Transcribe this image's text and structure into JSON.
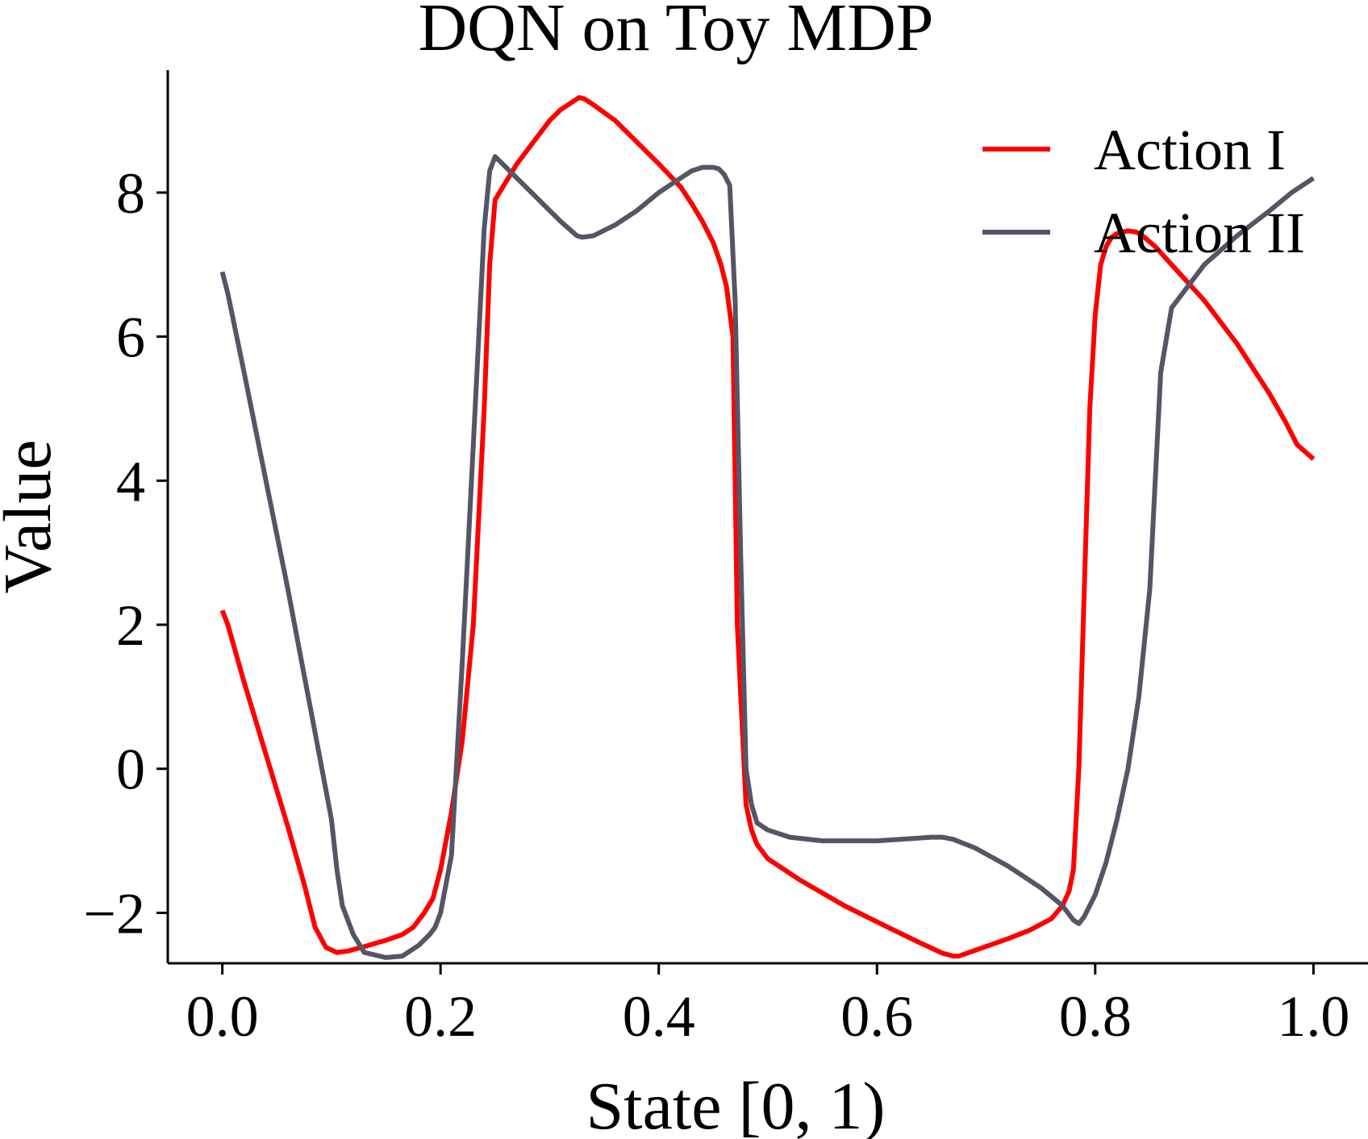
{
  "chart_data": {
    "type": "line",
    "title": "DQN on Toy MDP",
    "xlabel": "State [0, 1)",
    "ylabel": "Value",
    "xlim": [
      -0.05,
      1.05
    ],
    "ylim": [
      -2.7,
      9.7
    ],
    "xticks": [
      0.0,
      0.2,
      0.4,
      0.6,
      0.8,
      1.0
    ],
    "xtick_labels": [
      "0.0",
      "0.2",
      "0.4",
      "0.6",
      "0.8",
      "1.0"
    ],
    "yticks": [
      -2,
      0,
      2,
      4,
      6,
      8
    ],
    "ytick_labels": [
      "−2",
      "0",
      "2",
      "4",
      "6",
      "8"
    ],
    "grid": false,
    "legend_position": "top-right",
    "series": [
      {
        "name": "Action I",
        "color": "#ff0000",
        "x": [
          0.0,
          0.005,
          0.02,
          0.04,
          0.06,
          0.075,
          0.085,
          0.095,
          0.105,
          0.115,
          0.13,
          0.15,
          0.165,
          0.175,
          0.185,
          0.193,
          0.2,
          0.21,
          0.22,
          0.23,
          0.24,
          0.245,
          0.25,
          0.27,
          0.29,
          0.3,
          0.31,
          0.32,
          0.327,
          0.332,
          0.34,
          0.36,
          0.38,
          0.4,
          0.42,
          0.43,
          0.44,
          0.45,
          0.457,
          0.462,
          0.468,
          0.472,
          0.48,
          0.485,
          0.49,
          0.5,
          0.53,
          0.57,
          0.61,
          0.64,
          0.66,
          0.67,
          0.675,
          0.69,
          0.72,
          0.74,
          0.76,
          0.77,
          0.776,
          0.78,
          0.785,
          0.79,
          0.795,
          0.8,
          0.805,
          0.81,
          0.815,
          0.82,
          0.83,
          0.838,
          0.845,
          0.855,
          0.87,
          0.9,
          0.93,
          0.96,
          0.975,
          0.985,
          1.0
        ],
        "y": [
          2.2,
          2.0,
          1.2,
          0.2,
          -0.8,
          -1.6,
          -2.2,
          -2.48,
          -2.55,
          -2.53,
          -2.47,
          -2.38,
          -2.3,
          -2.2,
          -2.0,
          -1.8,
          -1.4,
          -0.6,
          0.4,
          2.0,
          5.0,
          7.0,
          7.9,
          8.4,
          8.8,
          9.0,
          9.15,
          9.25,
          9.32,
          9.3,
          9.22,
          9.0,
          8.7,
          8.4,
          8.08,
          7.85,
          7.6,
          7.3,
          7.0,
          6.7,
          6.0,
          2.0,
          -0.5,
          -0.85,
          -1.05,
          -1.25,
          -1.55,
          -1.9,
          -2.2,
          -2.42,
          -2.56,
          -2.6,
          -2.6,
          -2.52,
          -2.36,
          -2.24,
          -2.08,
          -1.9,
          -1.7,
          -1.4,
          0.0,
          2.5,
          5.0,
          6.3,
          7.0,
          7.25,
          7.38,
          7.43,
          7.47,
          7.45,
          7.38,
          7.25,
          7.0,
          6.5,
          5.9,
          5.2,
          4.8,
          4.5,
          4.3
        ]
      },
      {
        "name": "Action II",
        "color": "#555566",
        "x": [
          0.0,
          0.005,
          0.02,
          0.04,
          0.06,
          0.07,
          0.08,
          0.09,
          0.1,
          0.105,
          0.11,
          0.12,
          0.13,
          0.15,
          0.165,
          0.17,
          0.18,
          0.19,
          0.195,
          0.2,
          0.21,
          0.22,
          0.23,
          0.24,
          0.245,
          0.25,
          0.27,
          0.29,
          0.31,
          0.325,
          0.33,
          0.34,
          0.36,
          0.38,
          0.4,
          0.42,
          0.43,
          0.44,
          0.45,
          0.455,
          0.46,
          0.465,
          0.47,
          0.475,
          0.48,
          0.485,
          0.49,
          0.5,
          0.52,
          0.55,
          0.6,
          0.65,
          0.66,
          0.67,
          0.69,
          0.72,
          0.75,
          0.77,
          0.775,
          0.78,
          0.785,
          0.79,
          0.8,
          0.81,
          0.82,
          0.83,
          0.84,
          0.85,
          0.855,
          0.86,
          0.87,
          0.9,
          0.93,
          0.96,
          0.98,
          1.0
        ],
        "y": [
          6.9,
          6.6,
          5.5,
          4.0,
          2.5,
          1.7,
          0.9,
          0.1,
          -0.7,
          -1.4,
          -1.9,
          -2.3,
          -2.55,
          -2.62,
          -2.6,
          -2.55,
          -2.45,
          -2.3,
          -2.2,
          -2.0,
          -1.2,
          1.5,
          4.5,
          7.5,
          8.3,
          8.5,
          8.2,
          7.9,
          7.6,
          7.4,
          7.38,
          7.4,
          7.55,
          7.75,
          8.0,
          8.2,
          8.3,
          8.35,
          8.35,
          8.33,
          8.25,
          8.1,
          6.5,
          3.0,
          0.0,
          -0.5,
          -0.75,
          -0.85,
          -0.95,
          -1.0,
          -1.0,
          -0.95,
          -0.95,
          -0.98,
          -1.1,
          -1.35,
          -1.65,
          -1.9,
          -2.0,
          -2.1,
          -2.15,
          -2.05,
          -1.75,
          -1.3,
          -0.7,
          0.0,
          1.0,
          2.5,
          4.0,
          5.5,
          6.4,
          7.0,
          7.4,
          7.75,
          8.0,
          8.2
        ]
      }
    ]
  }
}
